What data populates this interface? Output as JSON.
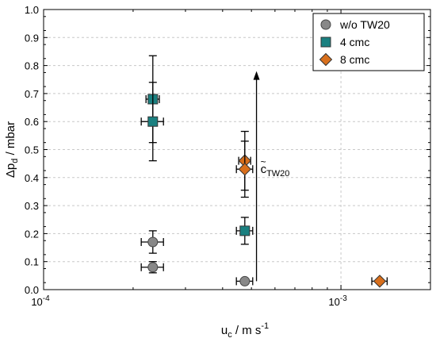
{
  "chart_data": {
    "type": "scatter",
    "title": "",
    "xlabel": {
      "main": "u",
      "sub": "c",
      "units": "  /  m s",
      "sup": "-1"
    },
    "ylabel": {
      "main": "Δp",
      "sub": "d",
      "units": "  /  mbar"
    },
    "x_scale": "log",
    "xlim": [
      0.0001,
      0.002
    ],
    "ylim": [
      0,
      1.0
    ],
    "x_ticks": [
      {
        "value": 0.0001,
        "base": "10",
        "exp": "-4"
      },
      {
        "value": 0.001,
        "base": "10",
        "exp": "-3"
      }
    ],
    "y_ticks": [
      {
        "value": 0.0,
        "label": "0.0"
      },
      {
        "value": 0.1,
        "label": "0.1"
      },
      {
        "value": 0.2,
        "label": "0.2"
      },
      {
        "value": 0.3,
        "label": "0.3"
      },
      {
        "value": 0.4,
        "label": "0.4"
      },
      {
        "value": 0.5,
        "label": "0.5"
      },
      {
        "value": 0.6,
        "label": "0.6"
      },
      {
        "value": 0.7,
        "label": "0.7"
      },
      {
        "value": 0.8,
        "label": "0.8"
      },
      {
        "value": 0.9,
        "label": "0.9"
      },
      {
        "value": 1.0,
        "label": "1.0"
      }
    ],
    "grid": true,
    "legend_position": "top-right",
    "series": [
      {
        "name": "w/o TW20",
        "marker": "circle",
        "color": "#888888",
        "points": [
          {
            "x": 0.000233,
            "y": 0.17,
            "xerr": 2e-05,
            "yerr": 0.04
          },
          {
            "x": 0.000233,
            "y": 0.08,
            "xerr": 2e-05,
            "yerr": 0.02
          },
          {
            "x": 0.000475,
            "y": 0.03,
            "xerr": 3e-05,
            "yerr": 0.0
          }
        ]
      },
      {
        "name": "4 cmc",
        "marker": "square",
        "color": "#1a8080",
        "points": [
          {
            "x": 0.000233,
            "y": 0.68,
            "xerr": 1.2e-05,
            "yerr": 0.155
          },
          {
            "x": 0.000233,
            "y": 0.6,
            "xerr": 2e-05,
            "yerr": 0.14
          },
          {
            "x": 0.000475,
            "y": 0.21,
            "xerr": 3e-05,
            "yerr": 0.048
          }
        ]
      },
      {
        "name": "8 cmc",
        "marker": "diamond",
        "color": "#d86f1c",
        "points": [
          {
            "x": 0.000475,
            "y": 0.46,
            "xerr": 2.2e-05,
            "yerr": 0.105
          },
          {
            "x": 0.000475,
            "y": 0.43,
            "xerr": 3e-05,
            "yerr": 0.1
          },
          {
            "x": 0.00135,
            "y": 0.03,
            "xerr": 8e-05,
            "yerr": 0.0
          }
        ]
      }
    ],
    "annotation": {
      "text_main": "c",
      "text_accent": "~",
      "text_sub": "TW20",
      "arrow_x": 0.00052,
      "arrow_y_start": 0.03,
      "arrow_y_end": 0.78,
      "label_y": 0.43
    }
  }
}
